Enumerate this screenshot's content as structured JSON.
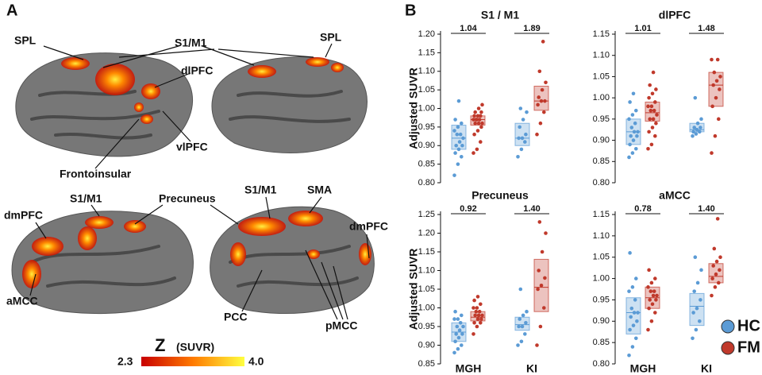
{
  "panel_a": {
    "letter": "A",
    "labels": [
      "SPL",
      "S1/M1",
      "SPL",
      "dlPFC",
      "vlPFC",
      "Frontoinsular",
      "S1/M1",
      "Precuneus",
      "S1/M1",
      "SMA",
      "dmPFC",
      "dmPFC",
      "aMCC",
      "PCC",
      "pMCC"
    ],
    "colorbar": {
      "title": "Z",
      "unit": "(SUVR)",
      "min_label": "2.3",
      "max_label": "4.0"
    }
  },
  "panel_b": {
    "letter": "B"
  },
  "chart_data": [
    {
      "type": "strip",
      "title": "S1 / M1",
      "ylabel": "Adjusted SUVR",
      "categories": [
        "MGH",
        "KI"
      ],
      "effect_sizes": [
        "1.04",
        "1.89"
      ],
      "ylim": [
        0.8,
        1.2
      ],
      "yticks": [
        {
          "value": 0.8,
          "label": "0.80"
        },
        0.85,
        {
          "value": 0.9,
          "label": "0.90"
        },
        0.95,
        {
          "value": 1,
          "label": "1.00"
        },
        1.05,
        {
          "value": 1.1,
          "label": "1.10"
        },
        1.15,
        {
          "value": 1.2,
          "label": "1.20"
        }
      ],
      "series": [
        {
          "name": "HC",
          "color": "#5b9bd5",
          "values": [
            [
              0.82,
              0.85,
              0.87,
              0.88,
              0.89,
              0.9,
              0.9,
              0.91,
              0.92,
              0.93,
              0.93,
              0.94,
              0.95,
              0.96,
              0.97,
              1.02
            ],
            [
              0.87,
              0.89,
              0.91,
              0.92,
              0.92,
              0.93,
              0.95,
              0.97,
              0.99,
              1.0
            ]
          ],
          "mean": [
            0.92,
            0.92
          ],
          "lower": [
            0.89,
            0.9
          ],
          "upper": [
            0.955,
            0.96
          ]
        },
        {
          "name": "FM",
          "color": "#c0392b",
          "values": [
            [
              0.88,
              0.89,
              0.91,
              0.93,
              0.94,
              0.95,
              0.96,
              0.96,
              0.96,
              0.97,
              0.97,
              0.97,
              0.97,
              0.98,
              0.98,
              0.98,
              0.99,
              0.99,
              1.0,
              1.01
            ],
            [
              0.93,
              0.96,
              0.99,
              1.01,
              1.02,
              1.02,
              1.03,
              1.05,
              1.07,
              1.1,
              1.18
            ]
          ],
          "mean": [
            0.97,
            1.02
          ],
          "lower": [
            0.955,
            0.995
          ],
          "upper": [
            0.98,
            1.06
          ]
        }
      ]
    },
    {
      "type": "strip",
      "title": "dlPFC",
      "categories": [
        "MGH",
        "KI"
      ],
      "effect_sizes": [
        "1.01",
        "1.48"
      ],
      "ylim": [
        0.8,
        1.15
      ],
      "yticks": [
        {
          "value": 0.8,
          "label": "0.80"
        },
        0.85,
        {
          "value": 0.9,
          "label": "0.90"
        },
        0.95,
        {
          "value": 1,
          "label": "1.00"
        },
        1.05,
        {
          "value": 1.1,
          "label": "1.10"
        },
        1.15
      ],
      "series": [
        {
          "name": "HC",
          "color": "#5b9bd5",
          "values": [
            [
              0.86,
              0.87,
              0.88,
              0.89,
              0.9,
              0.91,
              0.91,
              0.92,
              0.92,
              0.93,
              0.94,
              0.95,
              0.96,
              0.97,
              0.99,
              1.01
            ],
            [
              0.91,
              0.915,
              0.92,
              0.92,
              0.925,
              0.93,
              0.93,
              0.94,
              0.95,
              1.0
            ]
          ],
          "mean": [
            0.92,
            0.925
          ],
          "lower": [
            0.89,
            0.92
          ],
          "upper": [
            0.95,
            0.94
          ]
        },
        {
          "name": "FM",
          "color": "#c0392b",
          "values": [
            [
              0.88,
              0.89,
              0.91,
              0.92,
              0.93,
              0.94,
              0.95,
              0.95,
              0.96,
              0.97,
              0.97,
              0.98,
              0.98,
              0.99,
              1.0,
              1.01,
              1.02,
              1.03,
              1.06
            ],
            [
              0.87,
              0.91,
              0.95,
              0.98,
              1.0,
              1.02,
              1.03,
              1.04,
              1.05,
              1.06,
              1.09,
              1.09
            ]
          ],
          "mean": [
            0.965,
            1.03
          ],
          "lower": [
            0.945,
            0.98
          ],
          "upper": [
            0.99,
            1.06
          ]
        }
      ]
    },
    {
      "type": "strip",
      "title": "Precuneus",
      "ylabel": "Adjusted SUVR",
      "categories": [
        "MGH",
        "KI"
      ],
      "effect_sizes": [
        "0.92",
        "1.40"
      ],
      "ylim": [
        0.85,
        1.25
      ],
      "yticks": [
        0.85,
        {
          "value": 0.9,
          "label": "0.90"
        },
        0.95,
        {
          "value": 1,
          "label": "1.00"
        },
        1.05,
        {
          "value": 1.1,
          "label": "1.10"
        },
        1.15,
        {
          "value": 1.2,
          "label": "1.20"
        },
        1.25
      ],
      "series": [
        {
          "name": "HC",
          "color": "#5b9bd5",
          "values": [
            [
              0.88,
              0.89,
              0.9,
              0.91,
              0.92,
              0.93,
              0.93,
              0.94,
              0.95,
              0.95,
              0.96,
              0.97,
              0.97,
              0.98,
              0.99
            ],
            [
              0.9,
              0.91,
              0.93,
              0.95,
              0.95,
              0.96,
              0.97,
              0.98,
              0.99,
              1.05
            ]
          ],
          "mean": [
            0.935,
            0.955
          ],
          "lower": [
            0.91,
            0.94
          ],
          "upper": [
            0.96,
            0.975
          ]
        },
        {
          "name": "FM",
          "color": "#c0392b",
          "values": [
            [
              0.93,
              0.95,
              0.96,
              0.96,
              0.97,
              0.97,
              0.98,
              0.98,
              0.98,
              0.99,
              0.99,
              1.0,
              1.0,
              1.01,
              1.02,
              1.03
            ],
            [
              0.9,
              0.95,
              1.0,
              1.05,
              1.06,
              1.08,
              1.1,
              1.15,
              1.2,
              1.23
            ]
          ],
          "mean": [
            0.975,
            1.055
          ],
          "lower": [
            0.965,
            0.99
          ],
          "upper": [
            0.99,
            1.13
          ]
        }
      ]
    },
    {
      "type": "strip",
      "title": "aMCC",
      "categories": [
        "MGH",
        "KI"
      ],
      "effect_sizes": [
        "0.78",
        "1.40"
      ],
      "ylim": [
        0.8,
        1.15
      ],
      "yticks": [
        {
          "value": 0.8,
          "label": "0.80"
        },
        0.85,
        {
          "value": 0.9,
          "label": "0.90"
        },
        0.95,
        {
          "value": 1,
          "label": "1.00"
        },
        1.05,
        {
          "value": 1.1,
          "label": "1.10"
        },
        1.15
      ],
      "series": [
        {
          "name": "HC",
          "color": "#5b9bd5",
          "values": [
            [
              0.82,
              0.84,
              0.86,
              0.88,
              0.89,
              0.9,
              0.91,
              0.92,
              0.92,
              0.93,
              0.95,
              0.97,
              0.98,
              1.0,
              1.06
            ],
            [
              0.86,
              0.88,
              0.9,
              0.92,
              0.93,
              0.95,
              0.97,
              0.99,
              1.02,
              1.05
            ]
          ],
          "mean": [
            0.92,
            0.935
          ],
          "lower": [
            0.87,
            0.89
          ],
          "upper": [
            0.955,
            0.965
          ]
        },
        {
          "name": "FM",
          "color": "#c0392b",
          "values": [
            [
              0.88,
              0.9,
              0.92,
              0.93,
              0.94,
              0.95,
              0.95,
              0.96,
              0.96,
              0.97,
              0.97,
              0.98,
              0.99,
              1.0,
              1.02
            ],
            [
              0.96,
              0.98,
              0.99,
              1.0,
              1.01,
              1.02,
              1.03,
              1.04,
              1.05,
              1.07,
              1.14
            ]
          ],
          "mean": [
            0.955,
            1.005
          ],
          "lower": [
            0.93,
            0.99
          ],
          "upper": [
            0.98,
            1.035
          ]
        }
      ]
    }
  ]
}
